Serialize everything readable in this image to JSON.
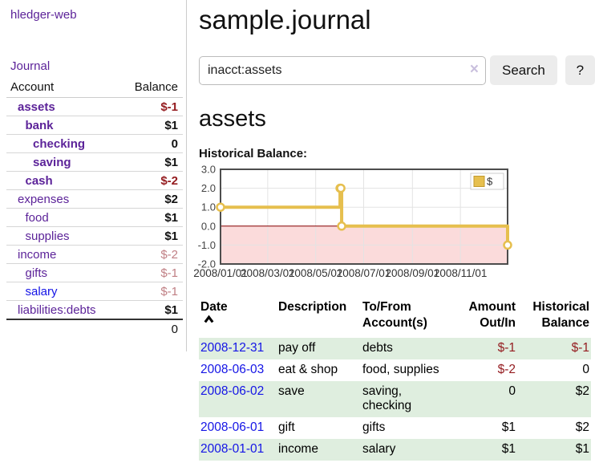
{
  "sidebar": {
    "brand": "hledger-web",
    "journal_link": "Journal",
    "table": {
      "account_header": "Account",
      "balance_header": "Balance",
      "accounts": [
        {
          "name": "assets",
          "depth": 1,
          "balance": "$-1",
          "bold": true,
          "neg": "strong"
        },
        {
          "name": "bank",
          "depth": 2,
          "balance": "$1",
          "bold": true,
          "neg": "none"
        },
        {
          "name": "checking",
          "depth": 3,
          "balance": "0",
          "bold": true,
          "neg": "none"
        },
        {
          "name": "saving",
          "depth": 3,
          "balance": "$1",
          "bold": true,
          "neg": "none"
        },
        {
          "name": "cash",
          "depth": 2,
          "balance": "$-2",
          "bold": true,
          "neg": "strong"
        },
        {
          "name": "expenses",
          "depth": 1,
          "balance": "$2",
          "bold": false,
          "neg": "none"
        },
        {
          "name": "food",
          "depth": 2,
          "balance": "$1",
          "bold": false,
          "neg": "none"
        },
        {
          "name": "supplies",
          "depth": 2,
          "balance": "$1",
          "bold": false,
          "neg": "none"
        },
        {
          "name": "income",
          "depth": 1,
          "balance": "$-2",
          "bold": false,
          "neg": "dim"
        },
        {
          "name": "gifts",
          "depth": 2,
          "balance": "$-1",
          "bold": false,
          "neg": "dim"
        },
        {
          "name": "salary",
          "depth": 2,
          "balance": "$-1",
          "bold": false,
          "neg": "dim",
          "link_color": "blue"
        },
        {
          "name": "liabilities:debts",
          "depth": 1,
          "balance": "$1",
          "bold": false,
          "neg": "none"
        }
      ],
      "total": "0"
    }
  },
  "header": {
    "title": "sample.journal"
  },
  "search": {
    "query": "inacct:assets",
    "clear_icon": "×",
    "button_label": "Search",
    "help_label": "?"
  },
  "account_page": {
    "title": "assets",
    "chart_label": "Historical Balance:"
  },
  "chart_data": {
    "type": "line",
    "step": true,
    "title": "Historical Balance:",
    "legend": [
      {
        "label": "$",
        "color": "#e6bf4e"
      }
    ],
    "x_range": [
      "2008-01-01",
      "2008-12-31"
    ],
    "ylim": [
      -2.0,
      3.0
    ],
    "grid": true,
    "y_ticks": [
      {
        "v": 3,
        "label": "3.0"
      },
      {
        "v": 2,
        "label": "2.0"
      },
      {
        "v": 1,
        "label": "1.0"
      },
      {
        "v": 0,
        "label": "0.0"
      },
      {
        "v": -1,
        "label": "-1.0"
      },
      {
        "v": -2,
        "label": "-2.0"
      }
    ],
    "x_ticks": [
      {
        "date": "2008-01-01",
        "label": "2008/01/01"
      },
      {
        "date": "2008-03-01",
        "label": "2008/03/01"
      },
      {
        "date": "2008-05-01",
        "label": "2008/05/01"
      },
      {
        "date": "2008-07-01",
        "label": "2008/07/01"
      },
      {
        "date": "2008-09-01",
        "label": "2008/09/01"
      },
      {
        "date": "2008-11-01",
        "label": "2008/11/01"
      }
    ],
    "series": [
      {
        "name": "$",
        "color": "#e6bf4e",
        "points": [
          [
            "2008-01-01",
            1
          ],
          [
            "2008-06-01",
            2
          ],
          [
            "2008-06-02",
            2
          ],
          [
            "2008-06-03",
            0
          ],
          [
            "2008-12-31",
            -1
          ]
        ]
      }
    ],
    "negative_region_fill": "#fbdbdb",
    "zero_line_color": "#8b0000",
    "legend_position": "top-right"
  },
  "register": {
    "columns": [
      "Date",
      "Description",
      "To/From Account(s)",
      "Amount Out/In",
      "Historical Balance"
    ],
    "rows": [
      {
        "date": "2008-12-31",
        "description": "pay off",
        "accounts_lines": [
          "debts"
        ],
        "amount": "$-1",
        "amount_neg": true,
        "balance": "$-1",
        "balance_neg": true,
        "shaded": true
      },
      {
        "date": "2008-06-03",
        "description": "eat & shop",
        "accounts_lines": [
          "food, supplies"
        ],
        "amount": "$-2",
        "amount_neg": true,
        "balance": "0",
        "balance_neg": false,
        "shaded": false
      },
      {
        "date": "2008-06-02",
        "description": "save",
        "accounts_lines": [
          "saving,",
          "checking"
        ],
        "amount": "0",
        "amount_neg": false,
        "balance": "$2",
        "balance_neg": false,
        "shaded": true
      },
      {
        "date": "2008-06-01",
        "description": "gift",
        "accounts_lines": [
          "gifts"
        ],
        "amount": "$1",
        "amount_neg": false,
        "balance": "$2",
        "balance_neg": false,
        "shaded": false
      },
      {
        "date": "2008-01-01",
        "description": "income",
        "accounts_lines": [
          "salary"
        ],
        "amount": "$1",
        "amount_neg": false,
        "balance": "$1",
        "balance_neg": false,
        "shaded": true
      }
    ]
  },
  "colors": {
    "link_purple": "#5c2399",
    "link_blue": "#1414e6",
    "negative_red": "#941b1f",
    "negative_dim": "#c07f84",
    "row_green": "#dfeedf",
    "chart_gold": "#e6bf4e",
    "chart_pink": "#fbdbdb",
    "chart_zero_line": "#8b0000"
  }
}
